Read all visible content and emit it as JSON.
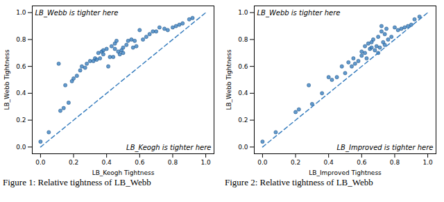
{
  "chart_data": [
    {
      "type": "scatter",
      "x_label": "LB_Keogh Tightness",
      "y_label": "LB_Webb Tightness",
      "annotations": [
        "LB_Webb is tighter here",
        "LB_Keogh is tighter here"
      ],
      "caption": "Figure 1:  Relative tightness of LB_Webb",
      "xlim": [
        -0.05,
        1.05
      ],
      "ylim": [
        -0.05,
        1.05
      ],
      "xticks": [
        {
          "value": 0,
          "label": "0.0"
        },
        0.2,
        0.4,
        0.6,
        0.8,
        {
          "value": 1,
          "label": "1.0"
        }
      ],
      "yticks": [
        {
          "value": 0,
          "label": "0.0"
        },
        0.2,
        0.4,
        0.6,
        0.8,
        {
          "value": 1,
          "label": "1.0"
        }
      ],
      "grid": false,
      "series": [
        {
          "type": "scatter",
          "marker": "circle",
          "color": "#3a7fbf",
          "x": [
            0.0,
            0.05,
            0.11,
            0.12,
            0.14,
            0.15,
            0.17,
            0.19,
            0.2,
            0.22,
            0.24,
            0.25,
            0.27,
            0.28,
            0.3,
            0.32,
            0.33,
            0.34,
            0.35,
            0.36,
            0.37,
            0.38,
            0.38,
            0.4,
            0.41,
            0.42,
            0.43,
            0.44,
            0.45,
            0.46,
            0.47,
            0.48,
            0.49,
            0.5,
            0.52,
            0.53,
            0.55,
            0.56,
            0.57,
            0.58,
            0.6,
            0.62,
            0.64,
            0.66,
            0.68,
            0.7,
            0.72,
            0.75,
            0.77,
            0.8,
            0.82,
            0.84,
            0.86,
            0.9,
            0.92,
            0.45,
            0.5
          ],
          "values": [
            0.04,
            0.11,
            0.62,
            0.27,
            0.29,
            0.46,
            0.33,
            0.49,
            0.51,
            0.53,
            0.57,
            0.6,
            0.59,
            0.62,
            0.64,
            0.64,
            0.66,
            0.65,
            0.7,
            0.66,
            0.71,
            0.72,
            0.69,
            0.73,
            0.6,
            0.67,
            0.75,
            0.67,
            0.77,
            0.79,
            0.71,
            0.69,
            0.72,
            0.74,
            0.76,
            0.79,
            0.8,
            0.74,
            0.79,
            0.75,
            0.87,
            0.8,
            0.82,
            0.84,
            0.86,
            0.86,
            0.89,
            0.88,
            0.87,
            0.89,
            0.9,
            0.91,
            0.92,
            0.95,
            0.96,
            0.73,
            0.7
          ]
        },
        {
          "type": "line",
          "line_style": "dashed",
          "color": "#3a7fbf",
          "x": [
            0,
            1
          ],
          "values": [
            0,
            1
          ]
        }
      ]
    },
    {
      "type": "scatter",
      "x_label": "LB_Improved Tightness",
      "y_label": "LB_Webb Tightness",
      "annotations": [
        "LB_Webb is tighter here",
        "LB_Improved is tighter here"
      ],
      "caption": "Figure 2:  Relative tightness of LB_Webb",
      "xlim": [
        -0.05,
        1.05
      ],
      "ylim": [
        -0.05,
        1.05
      ],
      "xticks": [
        {
          "value": 0,
          "label": "0.0"
        },
        0.2,
        0.4,
        0.6,
        0.8,
        {
          "value": 1,
          "label": "1.0"
        }
      ],
      "yticks": [
        {
          "value": 0,
          "label": "0.0"
        },
        0.2,
        0.4,
        0.6,
        0.8,
        {
          "value": 1,
          "label": "1.0"
        }
      ],
      "grid": false,
      "series": [
        {
          "type": "scatter",
          "marker": "circle",
          "color": "#3a7fbf",
          "x": [
            0.0,
            0.08,
            0.2,
            0.22,
            0.28,
            0.3,
            0.36,
            0.4,
            0.42,
            0.45,
            0.48,
            0.5,
            0.52,
            0.54,
            0.55,
            0.56,
            0.58,
            0.6,
            0.6,
            0.62,
            0.63,
            0.64,
            0.65,
            0.66,
            0.67,
            0.68,
            0.69,
            0.7,
            0.7,
            0.71,
            0.72,
            0.73,
            0.74,
            0.75,
            0.76,
            0.78,
            0.8,
            0.82,
            0.84,
            0.86,
            0.88,
            0.9,
            0.92,
            0.95,
            0.72,
            0.74,
            0.66,
            0.62
          ],
          "values": [
            0.04,
            0.11,
            0.26,
            0.28,
            0.46,
            0.32,
            0.4,
            0.52,
            0.5,
            0.52,
            0.6,
            0.55,
            0.63,
            0.6,
            0.66,
            0.62,
            0.64,
            0.68,
            0.71,
            0.75,
            0.66,
            0.77,
            0.73,
            0.74,
            0.8,
            0.72,
            0.75,
            0.82,
            0.7,
            0.74,
            0.86,
            0.78,
            0.84,
            0.88,
            0.8,
            0.82,
            0.89,
            0.87,
            0.88,
            0.89,
            0.9,
            0.91,
            0.95,
            0.97,
            0.9,
            0.76,
            0.78,
            0.7
          ]
        },
        {
          "type": "line",
          "line_style": "dashed",
          "color": "#3a7fbf",
          "x": [
            0,
            1
          ],
          "values": [
            0,
            1
          ]
        }
      ]
    }
  ]
}
